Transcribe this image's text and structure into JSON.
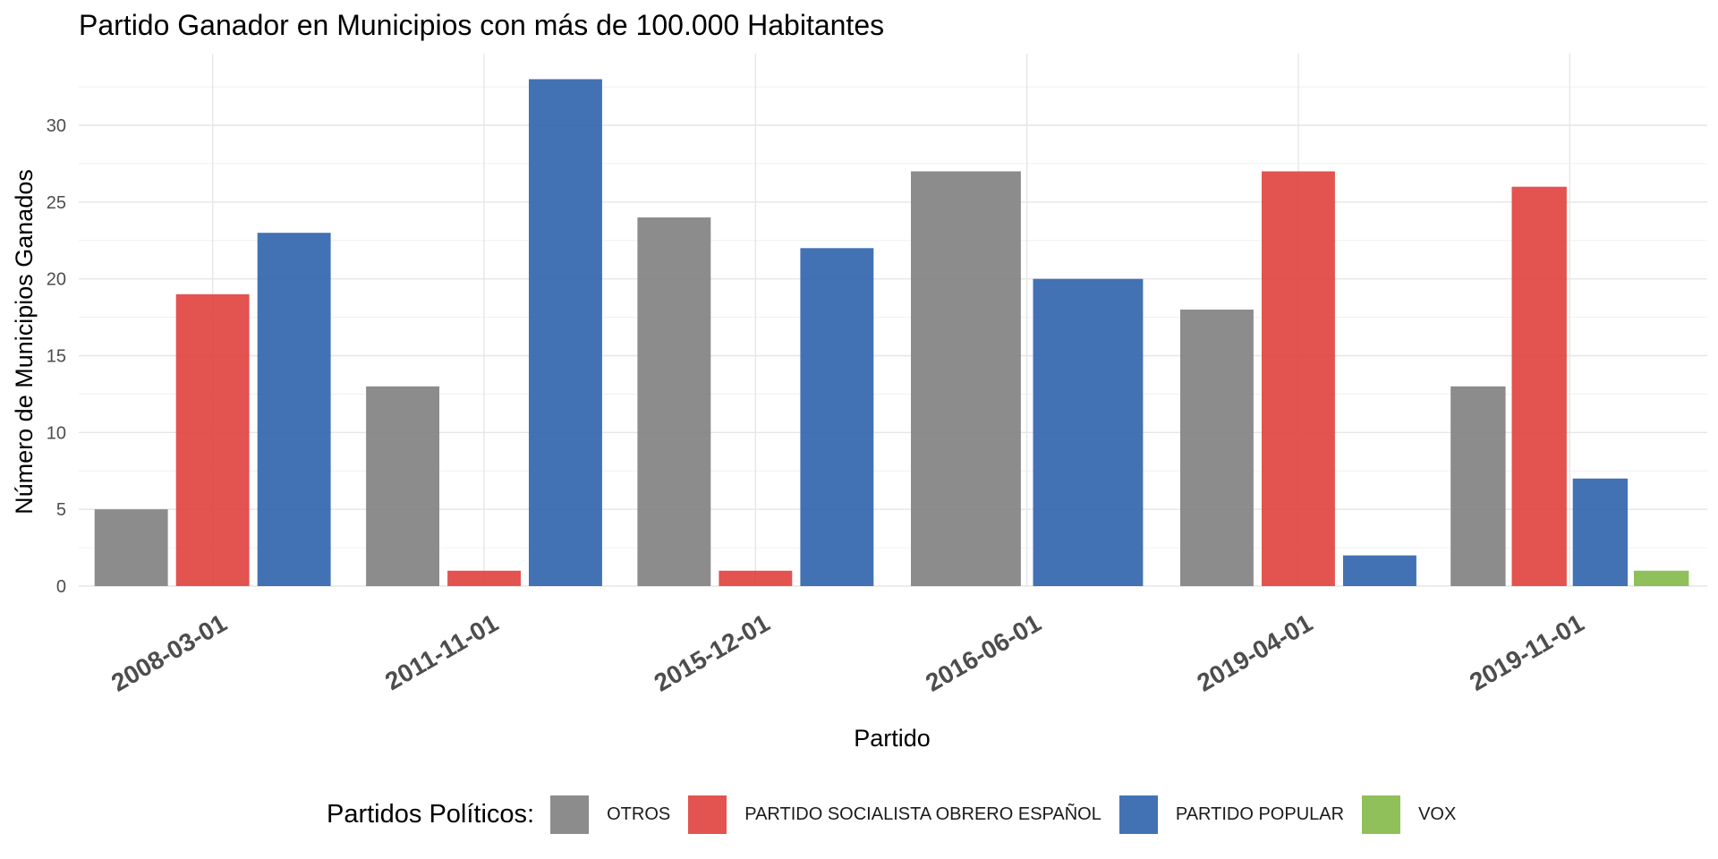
{
  "chart_data": {
    "type": "bar",
    "title": "Partido Ganador en Municipios con más de 100.000 Habitantes",
    "xlabel": "Partido",
    "ylabel": "Número de Municipios Ganados",
    "categories": [
      "2008-03-01",
      "2011-11-01",
      "2015-12-01",
      "2016-06-01",
      "2019-04-01",
      "2019-11-01"
    ],
    "yticks": [
      0,
      5,
      10,
      15,
      20,
      25,
      30
    ],
    "ylim": [
      0,
      34.5
    ],
    "grid": true,
    "legend_title": "Partidos Políticos:",
    "legend_position": "bottom",
    "series": [
      {
        "name": "OTROS",
        "color": "#808080",
        "values": [
          5,
          13,
          24,
          27,
          18,
          13
        ]
      },
      {
        "name": "PARTIDO SOCIALISTA OBRERO ESPAÑOL",
        "color": "#E0403C",
        "values": [
          19,
          1,
          1,
          null,
          27,
          26
        ]
      },
      {
        "name": "PARTIDO POPULAR",
        "color": "#2E63AC",
        "values": [
          23,
          33,
          22,
          20,
          2,
          7
        ]
      },
      {
        "name": "VOX",
        "color": "#84B947",
        "values": [
          null,
          null,
          null,
          null,
          null,
          1
        ]
      }
    ]
  }
}
